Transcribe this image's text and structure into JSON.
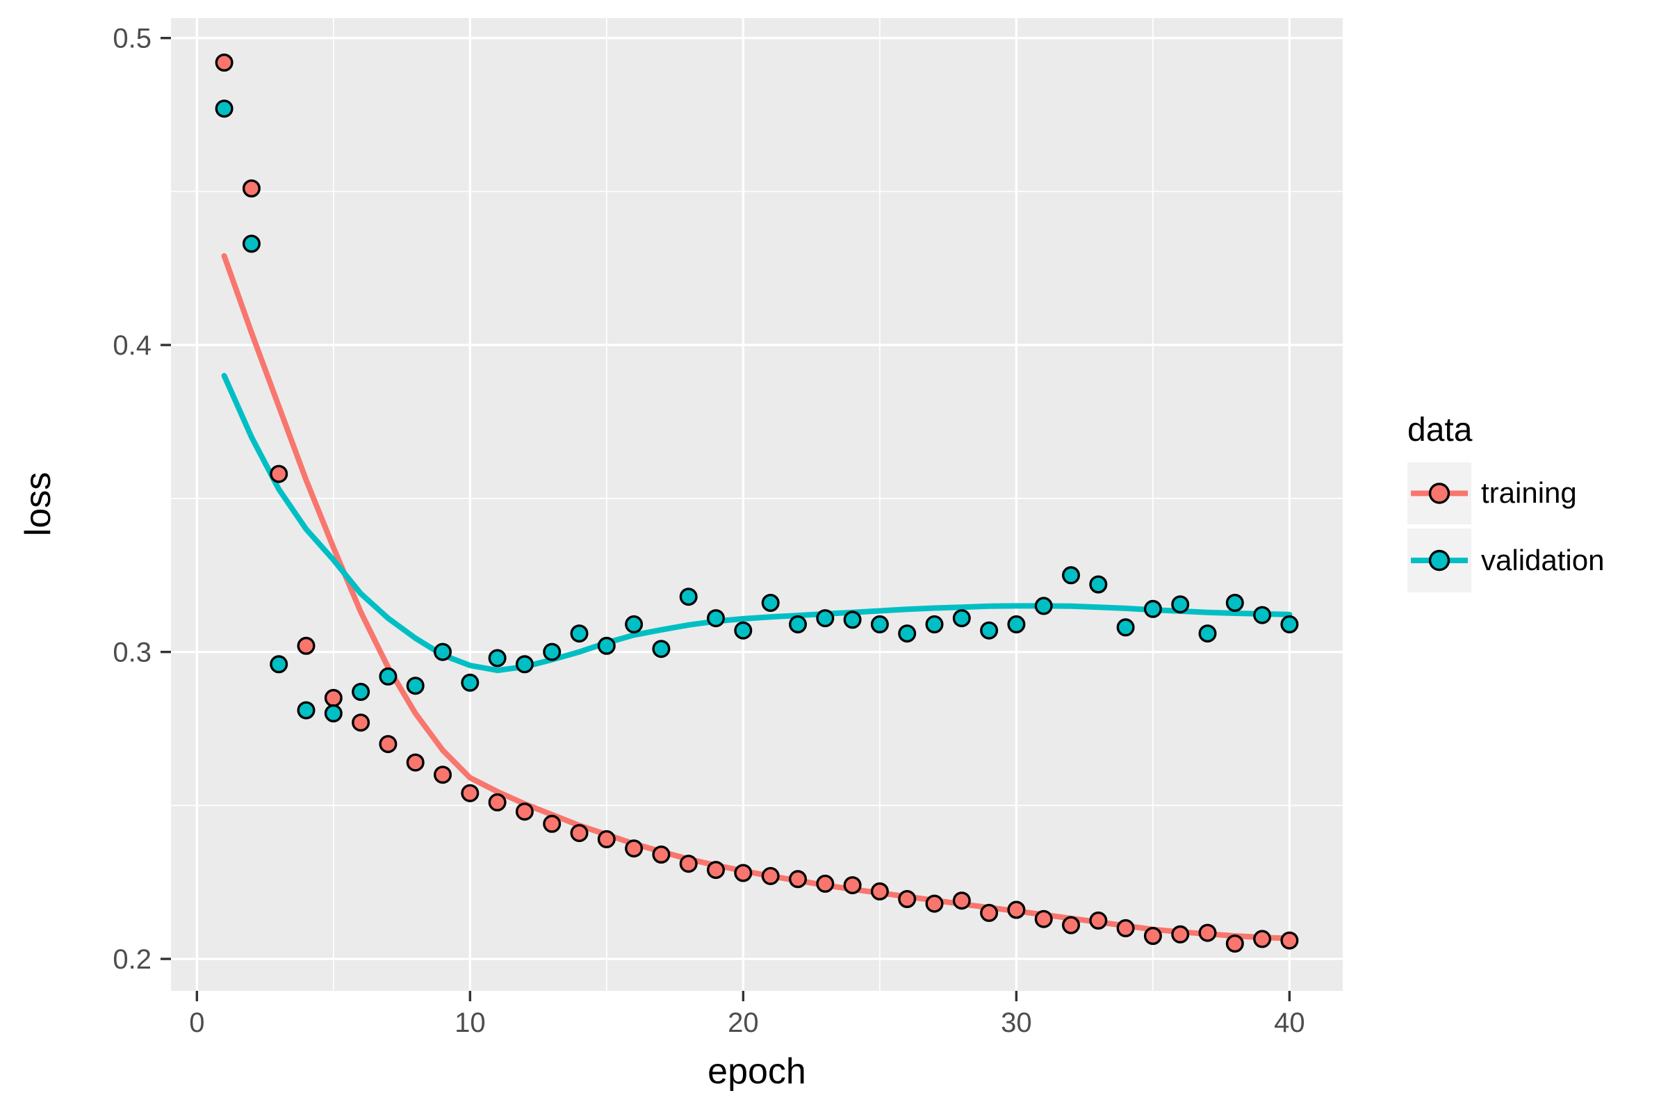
{
  "colors": {
    "background": "#FFFFFF",
    "panel_background": "#EBEBEB",
    "gridline": "#FFFFFF",
    "tick_mark": "#333333",
    "tick_label": "#4D4D4D",
    "axis_title": "#000000",
    "training": "#F8766D",
    "validation": "#00BFC4",
    "point_outline": "#000000",
    "legend_key_background": "#F2F2F2"
  },
  "legend": {
    "title": "data",
    "position": "right",
    "items": [
      {
        "label": "training",
        "color": "#F8766D",
        "key_glyph": "smooth-line-with-point"
      },
      {
        "label": "validation",
        "color": "#00BFC4",
        "key_glyph": "smooth-line-with-point"
      }
    ]
  },
  "chart_data": {
    "type": "scatter",
    "title": "",
    "xlabel": "epoch",
    "ylabel": "loss",
    "grid": "on",
    "legend_position": "right",
    "xlim": [
      -0.95,
      41.95
    ],
    "ylim": [
      0.1896,
      0.5065
    ],
    "x_ticks": [
      "0",
      "10",
      "20",
      "30",
      "40"
    ],
    "x_tick_values": [
      0,
      10,
      20,
      30,
      40
    ],
    "x_minor_ticks": [
      5,
      15,
      25,
      35
    ],
    "y_ticks": [
      "0.2",
      "0.3",
      "0.4",
      "0.5"
    ],
    "y_tick_values": [
      0.2,
      0.3,
      0.4,
      0.5
    ],
    "y_minor_ticks": [
      0.25,
      0.35,
      0.45
    ],
    "x": [
      1,
      2,
      3,
      4,
      5,
      6,
      7,
      8,
      9,
      10,
      11,
      12,
      13,
      14,
      15,
      16,
      17,
      18,
      19,
      20,
      21,
      22,
      23,
      24,
      25,
      26,
      27,
      28,
      29,
      30,
      31,
      32,
      33,
      34,
      35,
      36,
      37,
      38,
      39,
      40
    ],
    "series": [
      {
        "name": "training",
        "color": "#F8766D",
        "points": [
          0.492,
          0.451,
          0.358,
          0.302,
          0.285,
          0.277,
          0.27,
          0.264,
          0.26,
          0.254,
          0.251,
          0.248,
          0.244,
          0.241,
          0.239,
          0.236,
          0.234,
          0.231,
          0.229,
          0.228,
          0.227,
          0.226,
          0.2245,
          0.224,
          0.222,
          0.2195,
          0.218,
          0.219,
          0.215,
          0.216,
          0.213,
          0.211,
          0.2125,
          0.21,
          0.2075,
          0.208,
          0.2085,
          0.205,
          0.2065,
          0.206
        ],
        "smooth": [
          0.429,
          0.404,
          0.38,
          0.356,
          0.334,
          0.313,
          0.295,
          0.28,
          0.268,
          0.259,
          0.2545,
          0.2505,
          0.247,
          0.2435,
          0.2405,
          0.2375,
          0.235,
          0.2325,
          0.2305,
          0.2287,
          0.227,
          0.2255,
          0.224,
          0.2227,
          0.2215,
          0.2203,
          0.2191,
          0.2179,
          0.2167,
          0.2156,
          0.2144,
          0.2132,
          0.212,
          0.2108,
          0.2096,
          0.2088,
          0.2081,
          0.2075,
          0.207,
          0.2067
        ]
      },
      {
        "name": "validation",
        "color": "#00BFC4",
        "points": [
          0.477,
          0.433,
          0.296,
          0.281,
          0.28,
          0.287,
          0.292,
          0.289,
          0.3,
          0.29,
          0.298,
          0.296,
          0.3,
          0.306,
          0.302,
          0.309,
          0.301,
          0.318,
          0.311,
          0.307,
          0.316,
          0.309,
          0.311,
          0.3105,
          0.309,
          0.306,
          0.309,
          0.311,
          0.307,
          0.309,
          0.315,
          0.325,
          0.322,
          0.308,
          0.314,
          0.3155,
          0.306,
          0.316,
          0.312,
          0.309
        ],
        "smooth": [
          0.39,
          0.37,
          0.353,
          0.34,
          0.33,
          0.319,
          0.311,
          0.3045,
          0.299,
          0.2956,
          0.294,
          0.2952,
          0.2975,
          0.3,
          0.303,
          0.3055,
          0.3072,
          0.3088,
          0.31,
          0.3108,
          0.3114,
          0.3119,
          0.3124,
          0.3129,
          0.3134,
          0.3139,
          0.3143,
          0.3146,
          0.3149,
          0.315,
          0.315,
          0.3149,
          0.3146,
          0.3142,
          0.3137,
          0.3133,
          0.3129,
          0.3126,
          0.3124,
          0.3122
        ]
      }
    ]
  }
}
